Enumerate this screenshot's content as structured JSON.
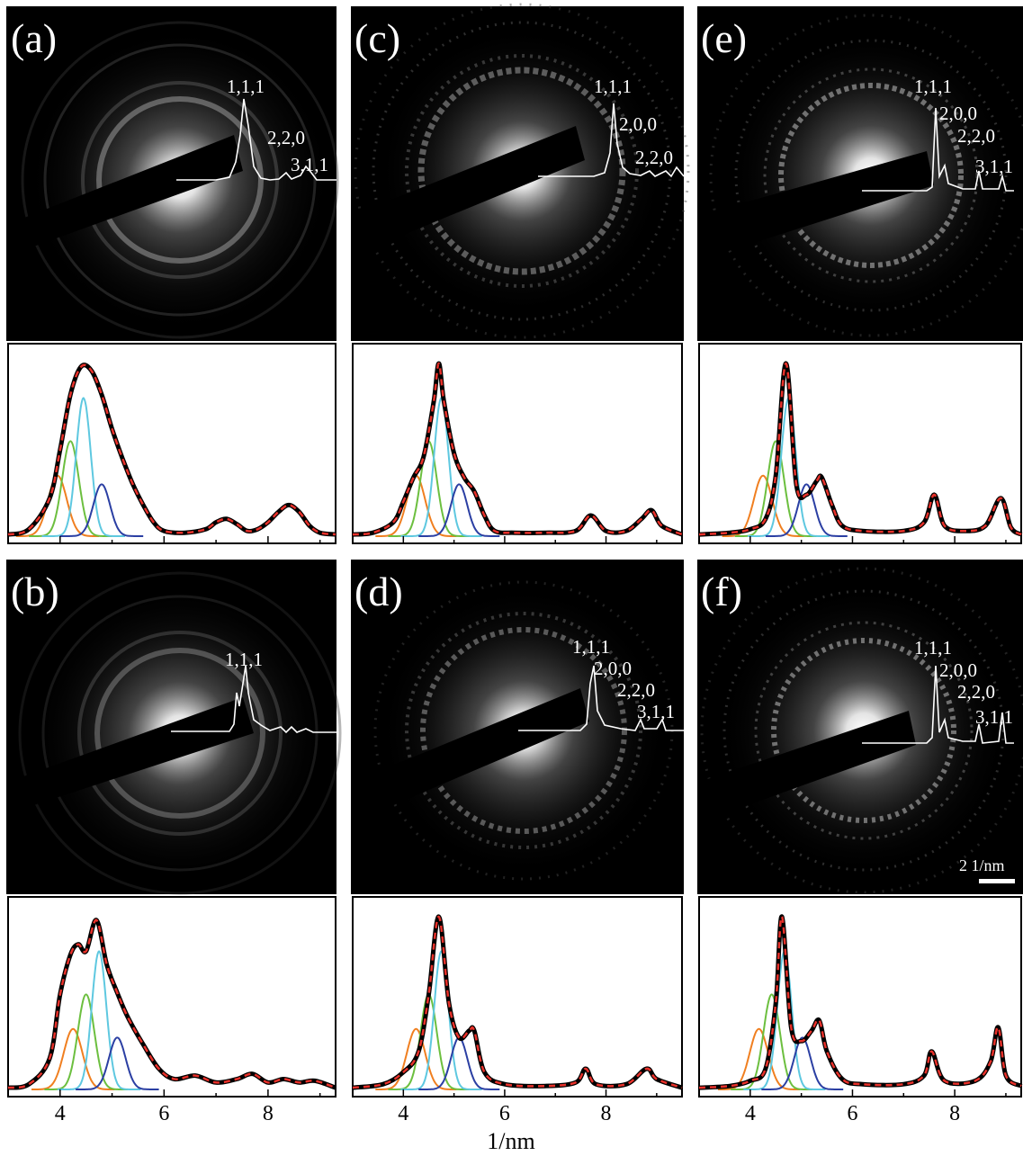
{
  "figure": {
    "xlabel": "1/nm",
    "x_ticks": [
      "4",
      "6",
      "8"
    ],
    "scale_bar": "2 1/nm"
  },
  "panels": [
    {
      "id": "a",
      "label": "(a)",
      "peaks": [
        "1,1,1",
        "2,2,0",
        "3,1,1"
      ]
    },
    {
      "id": "c",
      "label": "(c)",
      "peaks": [
        "1,1,1",
        "2,0,0",
        "2,2,0"
      ]
    },
    {
      "id": "e",
      "label": "(e)",
      "peaks": [
        "1,1,1",
        "2,0,0",
        "2,2,0",
        "3,1,1"
      ]
    },
    {
      "id": "b",
      "label": "(b)",
      "peaks": [
        "1,1,1"
      ]
    },
    {
      "id": "d",
      "label": "(d)",
      "peaks": [
        "1,1,1",
        "2,0,0",
        "2,2,0",
        "3,1,1"
      ]
    },
    {
      "id": "f",
      "label": "(f)",
      "peaks": [
        "1,1,1",
        "2,0,0",
        "2,2,0",
        "3,1,1"
      ]
    }
  ],
  "colors": {
    "background": "#000000",
    "trace": "#ffffff",
    "fit_total": "#000000",
    "fit_dashed": "#e8312a",
    "component_orange": "#f07f20",
    "component_green": "#6cbf3f",
    "component_blue": "#2b3fa3",
    "component_cyan": "#5ec8e0",
    "component_purple": "#7b3f9e"
  },
  "chart_data": [
    {
      "type": "line",
      "panel": "a",
      "x_range": [
        3.0,
        9.3
      ],
      "x": [
        3.0,
        3.4,
        3.8,
        4.0,
        4.2,
        4.4,
        4.6,
        4.8,
        5.0,
        5.2,
        5.4,
        5.6,
        5.8,
        6.0,
        6.4,
        6.8,
        7.0,
        7.2,
        7.4,
        7.6,
        7.8,
        8.0,
        8.2,
        8.4,
        8.6,
        8.8,
        9.0,
        9.3
      ],
      "series": [
        {
          "values": [
            0.01,
            0.04,
            0.22,
            0.5,
            0.82,
            0.98,
            0.96,
            0.82,
            0.62,
            0.45,
            0.3,
            0.18,
            0.08,
            0.03,
            0.02,
            0.04,
            0.08,
            0.1,
            0.07,
            0.03,
            0.04,
            0.08,
            0.14,
            0.18,
            0.14,
            0.06,
            0.02,
            0.01
          ]
        }
      ]
    },
    {
      "type": "line",
      "panel": "c",
      "x_range": [
        3.0,
        9.5
      ],
      "x": [
        3.0,
        3.4,
        3.8,
        4.0,
        4.2,
        4.4,
        4.6,
        4.7,
        4.8,
        5.0,
        5.2,
        5.4,
        5.6,
        5.8,
        6.2,
        6.8,
        7.4,
        7.7,
        8.0,
        8.4,
        8.7,
        8.9,
        9.1,
        9.5
      ],
      "series": [
        {
          "values": [
            0.01,
            0.02,
            0.08,
            0.2,
            0.34,
            0.46,
            0.78,
            1.0,
            0.78,
            0.48,
            0.34,
            0.26,
            0.12,
            0.03,
            0.02,
            0.02,
            0.03,
            0.12,
            0.03,
            0.03,
            0.1,
            0.15,
            0.06,
            0.01
          ]
        }
      ]
    },
    {
      "type": "line",
      "panel": "e",
      "x_range": [
        3.0,
        9.3
      ],
      "x": [
        3.0,
        3.6,
        4.0,
        4.3,
        4.5,
        4.7,
        4.9,
        5.1,
        5.3,
        5.4,
        5.6,
        5.8,
        6.2,
        7.0,
        7.4,
        7.6,
        7.8,
        8.2,
        8.6,
        8.9,
        9.1,
        9.3
      ],
      "series": [
        {
          "values": [
            0.01,
            0.02,
            0.04,
            0.1,
            0.35,
            1.0,
            0.3,
            0.24,
            0.32,
            0.34,
            0.18,
            0.06,
            0.03,
            0.03,
            0.08,
            0.24,
            0.06,
            0.03,
            0.06,
            0.22,
            0.05,
            0.01
          ]
        }
      ]
    },
    {
      "type": "line",
      "panel": "b",
      "x_range": [
        3.0,
        9.3
      ],
      "x": [
        3.0,
        3.4,
        3.8,
        4.0,
        4.2,
        4.35,
        4.5,
        4.7,
        4.9,
        5.1,
        5.3,
        5.6,
        5.9,
        6.2,
        6.6,
        7.0,
        7.4,
        7.7,
        8.0,
        8.3,
        8.6,
        8.9,
        9.3
      ],
      "series": [
        {
          "values": [
            0.01,
            0.03,
            0.18,
            0.55,
            0.78,
            0.84,
            0.8,
            0.98,
            0.72,
            0.56,
            0.42,
            0.26,
            0.12,
            0.06,
            0.08,
            0.04,
            0.06,
            0.09,
            0.04,
            0.06,
            0.04,
            0.05,
            0.01
          ]
        }
      ]
    },
    {
      "type": "line",
      "panel": "d",
      "x_range": [
        3.0,
        9.5
      ],
      "x": [
        3.0,
        3.6,
        4.0,
        4.3,
        4.5,
        4.7,
        4.9,
        5.1,
        5.3,
        5.4,
        5.6,
        6.0,
        6.8,
        7.4,
        7.6,
        7.8,
        8.4,
        8.8,
        9.0,
        9.5
      ],
      "series": [
        {
          "values": [
            0.01,
            0.03,
            0.1,
            0.22,
            0.55,
            1.0,
            0.5,
            0.3,
            0.34,
            0.34,
            0.1,
            0.03,
            0.02,
            0.04,
            0.12,
            0.03,
            0.03,
            0.12,
            0.06,
            0.01
          ]
        }
      ]
    },
    {
      "type": "line",
      "panel": "f",
      "x_range": [
        3.0,
        9.3
      ],
      "x": [
        3.0,
        3.6,
        4.0,
        4.3,
        4.5,
        4.62,
        4.8,
        5.0,
        5.2,
        5.35,
        5.5,
        5.8,
        6.2,
        7.0,
        7.4,
        7.55,
        7.8,
        8.4,
        8.7,
        8.85,
        9.0,
        9.3
      ],
      "series": [
        {
          "values": [
            0.01,
            0.02,
            0.05,
            0.12,
            0.5,
            1.0,
            0.36,
            0.28,
            0.34,
            0.4,
            0.22,
            0.06,
            0.03,
            0.03,
            0.08,
            0.22,
            0.05,
            0.05,
            0.16,
            0.36,
            0.08,
            0.02
          ]
        }
      ]
    }
  ]
}
